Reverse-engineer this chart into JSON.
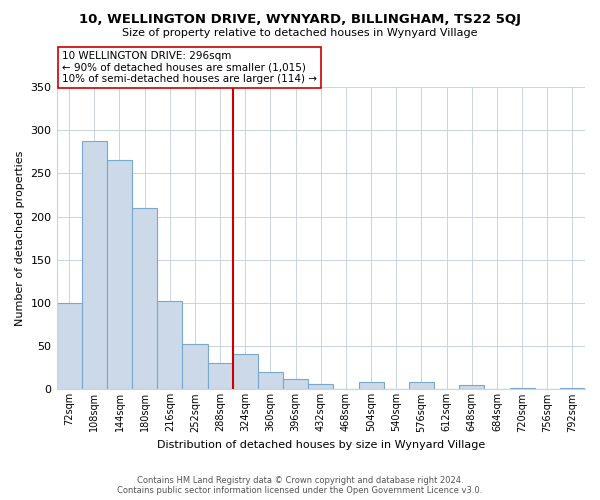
{
  "title": "10, WELLINGTON DRIVE, WYNYARD, BILLINGHAM, TS22 5QJ",
  "subtitle": "Size of property relative to detached houses in Wynyard Village",
  "xlabel": "Distribution of detached houses by size in Wynyard Village",
  "ylabel": "Number of detached properties",
  "bin_labels": [
    "72sqm",
    "108sqm",
    "144sqm",
    "180sqm",
    "216sqm",
    "252sqm",
    "288sqm",
    "324sqm",
    "360sqm",
    "396sqm",
    "432sqm",
    "468sqm",
    "504sqm",
    "540sqm",
    "576sqm",
    "612sqm",
    "648sqm",
    "684sqm",
    "720sqm",
    "756sqm",
    "792sqm"
  ],
  "bar_heights": [
    100,
    287,
    265,
    210,
    102,
    52,
    31,
    41,
    20,
    12,
    6,
    0,
    9,
    0,
    8,
    0,
    5,
    0,
    2,
    0,
    2
  ],
  "bar_color": "#ccd9e8",
  "bar_edge_color": "#7aa8cc",
  "vline_color": "#cc0000",
  "annotation_title": "10 WELLINGTON DRIVE: 296sqm",
  "annotation_line1": "← 90% of detached houses are smaller (1,015)",
  "annotation_line2": "10% of semi-detached houses are larger (114) →",
  "ylim": [
    0,
    350
  ],
  "yticks": [
    0,
    50,
    100,
    150,
    200,
    250,
    300,
    350
  ],
  "footer_line1": "Contains HM Land Registry data © Crown copyright and database right 2024.",
  "footer_line2": "Contains public sector information licensed under the Open Government Licence v3.0.",
  "background_color": "#ffffff",
  "grid_color": "#c8d4e0"
}
